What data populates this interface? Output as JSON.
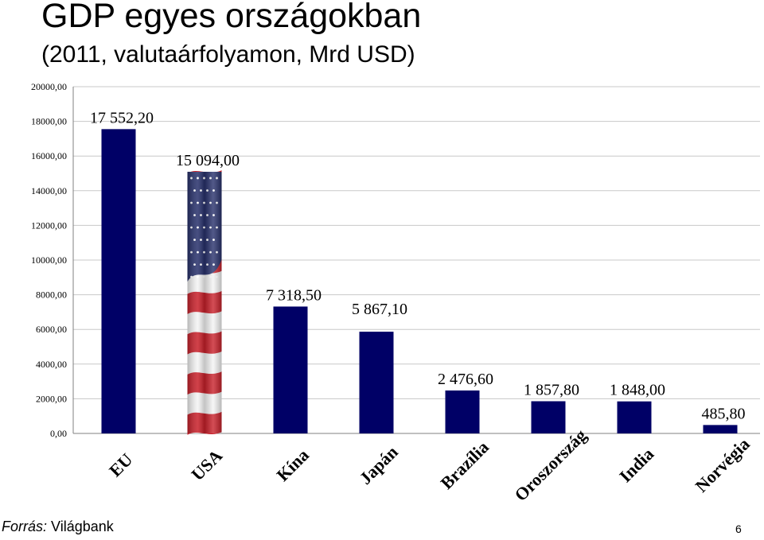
{
  "title": "GDP egyes országokban",
  "subtitle": "(2011, valutaárfolyamon, Mrd USD)",
  "source": {
    "label": "Forrás:",
    "value": "Világbank"
  },
  "page_number": "6",
  "colors": {
    "bar": "#000066",
    "flag_red": "#c8202a",
    "flag_blue": "#27306b",
    "flag_white": "#f4f4f4",
    "grid": "#c8c8c8"
  },
  "chart_data": {
    "type": "bar",
    "categories": [
      "EU",
      "USA",
      "Kína",
      "Japán",
      "Brazília",
      "Oroszország",
      "India",
      "Norvégia"
    ],
    "values": [
      17552.2,
      15094.0,
      7318.5,
      5867.1,
      2476.6,
      1857.8,
      1848.0,
      485.8
    ],
    "data_labels": [
      "17 552,20",
      "15 094,00",
      "7 318,50",
      "5 867,10",
      "2 476,60",
      "1 857,80",
      "1 848,00",
      "485,80"
    ],
    "ylim": [
      0,
      20000
    ],
    "yticks": [
      0,
      2000,
      4000,
      6000,
      8000,
      10000,
      12000,
      14000,
      16000,
      18000,
      20000
    ],
    "ytick_labels": [
      "0,00",
      "2000,00",
      "4000,00",
      "6000,00",
      "8000,00",
      "10000,00",
      "12000,00",
      "14000,00",
      "16000,00",
      "18000,00",
      "20000,00"
    ],
    "grid": true,
    "special_fill": {
      "USA": "us-flag"
    },
    "xlabel": "",
    "ylabel": ""
  }
}
